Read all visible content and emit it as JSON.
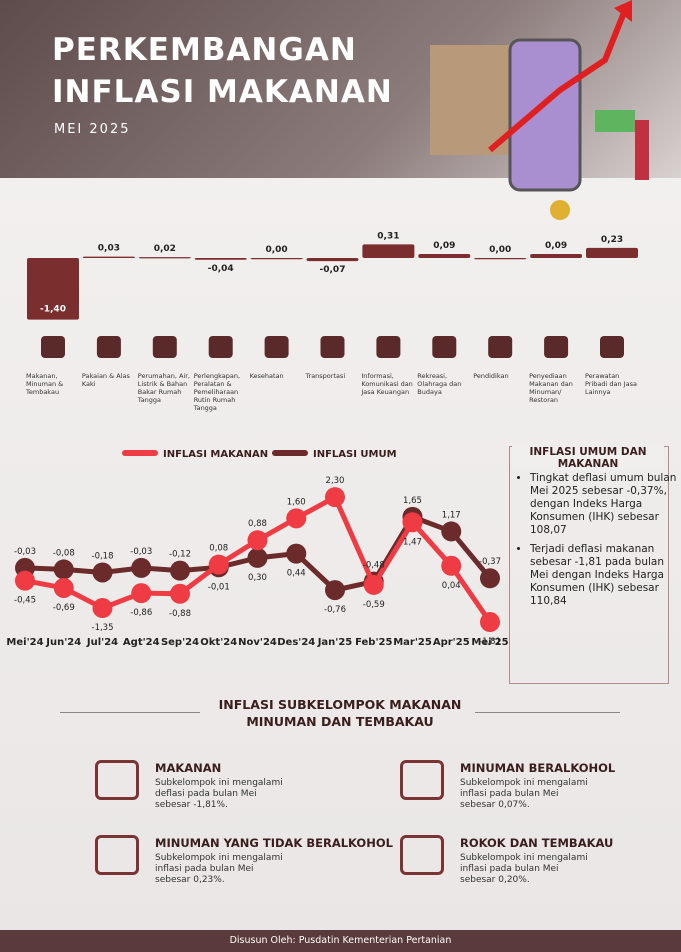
{
  "header": {
    "title_line1": "PERKEMBANGAN",
    "title_line2": "INFLASI MAKANAN",
    "subtitle": "MEI 2025"
  },
  "chart_data": [
    {
      "type": "bar",
      "color": "#7b2e2e",
      "categories": [
        "Makanan, Minuman & Tembakau",
        "Pakaian & Alas Kaki",
        "Perumahan, Air, Listrik & Bahan Bakar Rumah Tangga",
        "Perlengkapan, Peralatan & Pemeliharaan Rutin Rumah Tangga",
        "Kesehatan",
        "Transportasi",
        "Informasi, Komunikasi dan Jasa Keuangan",
        "Rekreasi, Olahraga dan Budaya",
        "Pendidikan",
        "Penyediaan Makanan dan Minuman/ Restoran",
        "Perawatan Pribadi dan Jasa Lainnya"
      ],
      "values": [
        -1.4,
        0.03,
        0.02,
        -0.04,
        0.0,
        -0.07,
        0.31,
        0.09,
        0.0,
        0.09,
        0.23
      ],
      "value_labels": [
        "-1,40",
        "0,03",
        "0,02",
        "-0,04",
        "0,00",
        "-0,07",
        "0,31",
        "0,09",
        "0,00",
        "0,09",
        "0,23"
      ]
    },
    {
      "type": "line",
      "categories": [
        "Mei'24",
        "Jun'24",
        "Jul'24",
        "Agt'24",
        "Sep'24",
        "Okt'24",
        "Nov'24",
        "Des'24",
        "Jan'25",
        "Feb'25",
        "Mar'25",
        "Apr'25",
        "Mei'25"
      ],
      "series": [
        {
          "name": "INFLASI MAKANAN",
          "color": "#ee3b44",
          "values": [
            -0.45,
            -0.69,
            -1.35,
            -0.86,
            -0.88,
            0.08,
            0.88,
            1.6,
            2.3,
            -0.59,
            1.47,
            0.04,
            -1.81
          ],
          "value_labels": [
            "-0,45",
            "-0,69",
            "-1,35",
            "-0,86",
            "-0,88",
            "0,08",
            "0,88",
            "1,60",
            "2,30",
            "-0,59",
            "1,47",
            "0,04",
            "-1,81"
          ]
        },
        {
          "name": "INFLASI UMUM",
          "color": "#6b2b2b",
          "values": [
            -0.03,
            -0.08,
            -0.18,
            -0.03,
            -0.12,
            -0.01,
            0.3,
            0.44,
            -0.76,
            -0.48,
            1.65,
            1.17,
            -0.37
          ],
          "value_labels": [
            "-0,03",
            "-0,08",
            "-0,18",
            "-0,03",
            "-0,12",
            "-0,01",
            "0,30",
            "0,44",
            "-0,76",
            "-0,48",
            "1,65",
            "1,17",
            "-0,37"
          ]
        }
      ]
    }
  ],
  "info_box": {
    "title": "INFLASI UMUM DAN MAKANAN",
    "bullets": [
      "Tingkat deflasi umum bulan Mei 2025 sebesar -0,37%, dengan Indeks Harga Konsumen (IHK) sebesar 108,07",
      "Terjadi deflasi makanan sebesar -1,81 pada bulan Mei dengan Indeks Harga Konsumen (IHK) sebesar 110,84"
    ]
  },
  "subgroups": {
    "title_line1": "INFLASI SUBKELOMPOK MAKANAN",
    "title_line2": "MINUMAN DAN TEMBAKAU",
    "items": [
      {
        "title": "MAKANAN",
        "text": "Subkelompok ini mengalami deflasi pada bulan Mei sebesar -1,81%."
      },
      {
        "title": "MINUMAN BERALKOHOL",
        "text": "Subkelompok ini mengalami inflasi pada bulan Mei sebesar 0,07%."
      },
      {
        "title": "MINUMAN YANG TIDAK BERALKOHOL",
        "text": "Subkelompok ini mengalami inflasi pada bulan Mei sebesar 0,23%."
      },
      {
        "title": "ROKOK DAN TEMBAKAU",
        "text": "Subkelompok ini mengalami inflasi pada bulan Mei sebesar 0,20%."
      }
    ]
  },
  "footer": "Disusun Oleh: Pusdatin Kementerian Pertanian"
}
